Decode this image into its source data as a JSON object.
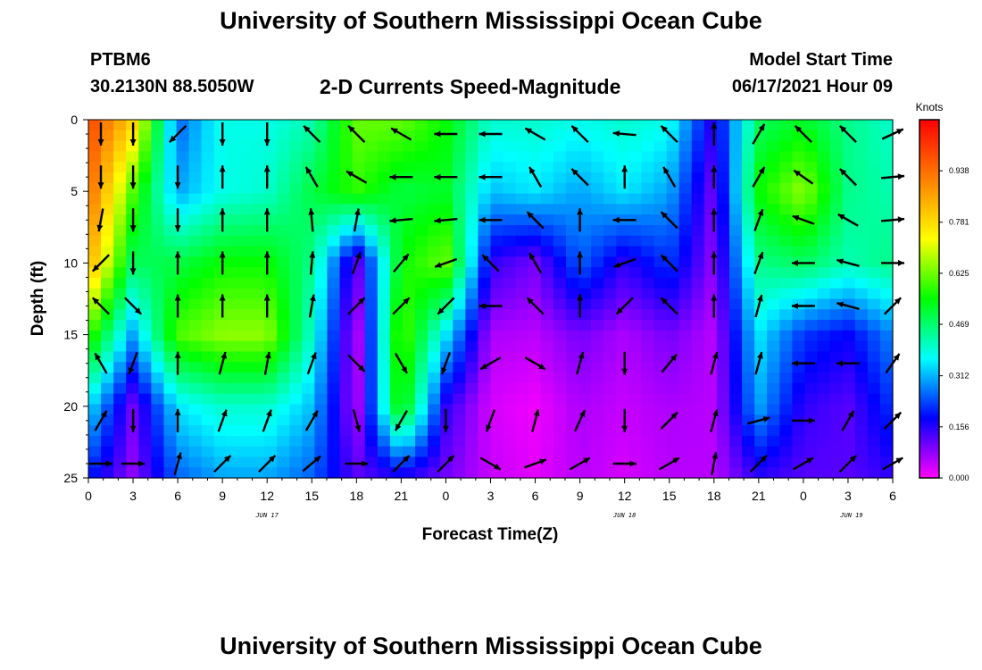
{
  "header": {
    "title": "University of Southern Mississippi Ocean Cube",
    "station": "PTBM6",
    "coords": "30.2130N  88.5050W",
    "product": "2-D Currents Speed-Magnitude",
    "model_start_label": "Model Start Time",
    "model_start_value": "06/17/2021 Hour 09"
  },
  "footer": {
    "title": "University of Southern Mississippi Ocean Cube"
  },
  "chart_data": {
    "type": "heatmap",
    "xlabel": "Forecast Time(Z)",
    "ylabel": "Depth (ft)",
    "x_tick_labels": [
      "0",
      "3",
      "6",
      "9",
      "12",
      "15",
      "18",
      "21",
      "0",
      "3",
      "6",
      "9",
      "12",
      "15",
      "18",
      "21",
      "0",
      "3",
      "6"
    ],
    "date_labels": [
      {
        "label": "JUN 17",
        "at_tick": 4
      },
      {
        "label": "JUN 18",
        "at_tick": 12
      },
      {
        "label": "JUN 19",
        "at_tick": 17
      }
    ],
    "y_ticks": [
      0,
      5,
      10,
      15,
      20,
      25
    ],
    "ylim": [
      0,
      25
    ],
    "y_inverted": true,
    "colorbar": {
      "unit": "Knots",
      "ticks": [
        "0.000",
        "0.156",
        "0.312",
        "0.469",
        "0.625",
        "0.781",
        "0.938"
      ],
      "range": [
        0,
        1.094
      ],
      "colors": [
        "#ff00ff",
        "#0000ff",
        "#00ffff",
        "#00ff00",
        "#ffff00",
        "#ff8000",
        "#ff0000"
      ]
    },
    "speed_grid_depths_ft": [
      0,
      5,
      10,
      15,
      20,
      25
    ],
    "speed_grid_hours": [
      0,
      3,
      6,
      9,
      12,
      15,
      18,
      21,
      24,
      27,
      30,
      33,
      36,
      39,
      42,
      45,
      48,
      51,
      54
    ],
    "speed_grid_knots": [
      [
        1.0,
        0.8,
        0.25,
        0.38,
        0.38,
        0.42,
        0.62,
        0.62,
        0.55,
        0.4,
        0.4,
        0.38,
        0.4,
        0.38,
        0.15,
        0.48,
        0.52,
        0.45,
        0.4
      ],
      [
        0.95,
        0.6,
        0.3,
        0.38,
        0.4,
        0.5,
        0.58,
        0.5,
        0.52,
        0.32,
        0.35,
        0.3,
        0.35,
        0.3,
        0.1,
        0.55,
        0.65,
        0.45,
        0.42
      ],
      [
        0.85,
        0.48,
        0.5,
        0.55,
        0.55,
        0.45,
        0.1,
        0.55,
        0.62,
        0.15,
        0.1,
        0.25,
        0.15,
        0.22,
        0.08,
        0.45,
        0.48,
        0.42,
        0.45
      ],
      [
        0.6,
        0.3,
        0.6,
        0.65,
        0.65,
        0.4,
        0.04,
        0.62,
        0.35,
        0.06,
        0.05,
        0.1,
        0.06,
        0.1,
        0.05,
        0.35,
        0.22,
        0.18,
        0.28
      ],
      [
        0.35,
        0.1,
        0.35,
        0.4,
        0.4,
        0.32,
        0.05,
        0.58,
        0.15,
        0.03,
        0.01,
        0.06,
        0.04,
        0.06,
        0.05,
        0.3,
        0.15,
        0.12,
        0.22
      ],
      [
        0.2,
        0.08,
        0.25,
        0.3,
        0.3,
        0.25,
        0.12,
        0.15,
        0.1,
        0.04,
        0.02,
        0.05,
        0.03,
        0.05,
        0.05,
        0.15,
        0.12,
        0.12,
        0.15
      ]
    ],
    "vector_directions_deg": [
      [
        180,
        180,
        225,
        180,
        180,
        315,
        315,
        300,
        270,
        270,
        300,
        315,
        275,
        315,
        0,
        30,
        315,
        315,
        65
      ],
      [
        180,
        180,
        180,
        0,
        0,
        330,
        300,
        270,
        270,
        270,
        330,
        315,
        0,
        330,
        0,
        30,
        305,
        315,
        85
      ],
      [
        190,
        180,
        180,
        0,
        0,
        355,
        10,
        265,
        265,
        270,
        315,
        0,
        270,
        315,
        0,
        20,
        290,
        300,
        85
      ],
      [
        225,
        180,
        0,
        0,
        0,
        5,
        20,
        40,
        250,
        315,
        330,
        0,
        250,
        315,
        0,
        20,
        270,
        285,
        90
      ],
      [
        315,
        135,
        0,
        0,
        0,
        10,
        45,
        45,
        225,
        270,
        315,
        0,
        225,
        315,
        0,
        15,
        270,
        285,
        45
      ],
      [
        330,
        200,
        0,
        15,
        10,
        20,
        135,
        150,
        200,
        240,
        120,
        15,
        180,
        40,
        15,
        15,
        270,
        270,
        35
      ],
      [
        30,
        180,
        0,
        20,
        20,
        30,
        165,
        210,
        180,
        200,
        15,
        25,
        180,
        45,
        15,
        75,
        90,
        30,
        45
      ],
      [
        90,
        90,
        15,
        45,
        45,
        50,
        90,
        45,
        45,
        120,
        70,
        60,
        90,
        60,
        10,
        45,
        60,
        45,
        60
      ]
    ],
    "vector_depths_ft": [
      1,
      4,
      7,
      10,
      13,
      17,
      21,
      24
    ]
  }
}
